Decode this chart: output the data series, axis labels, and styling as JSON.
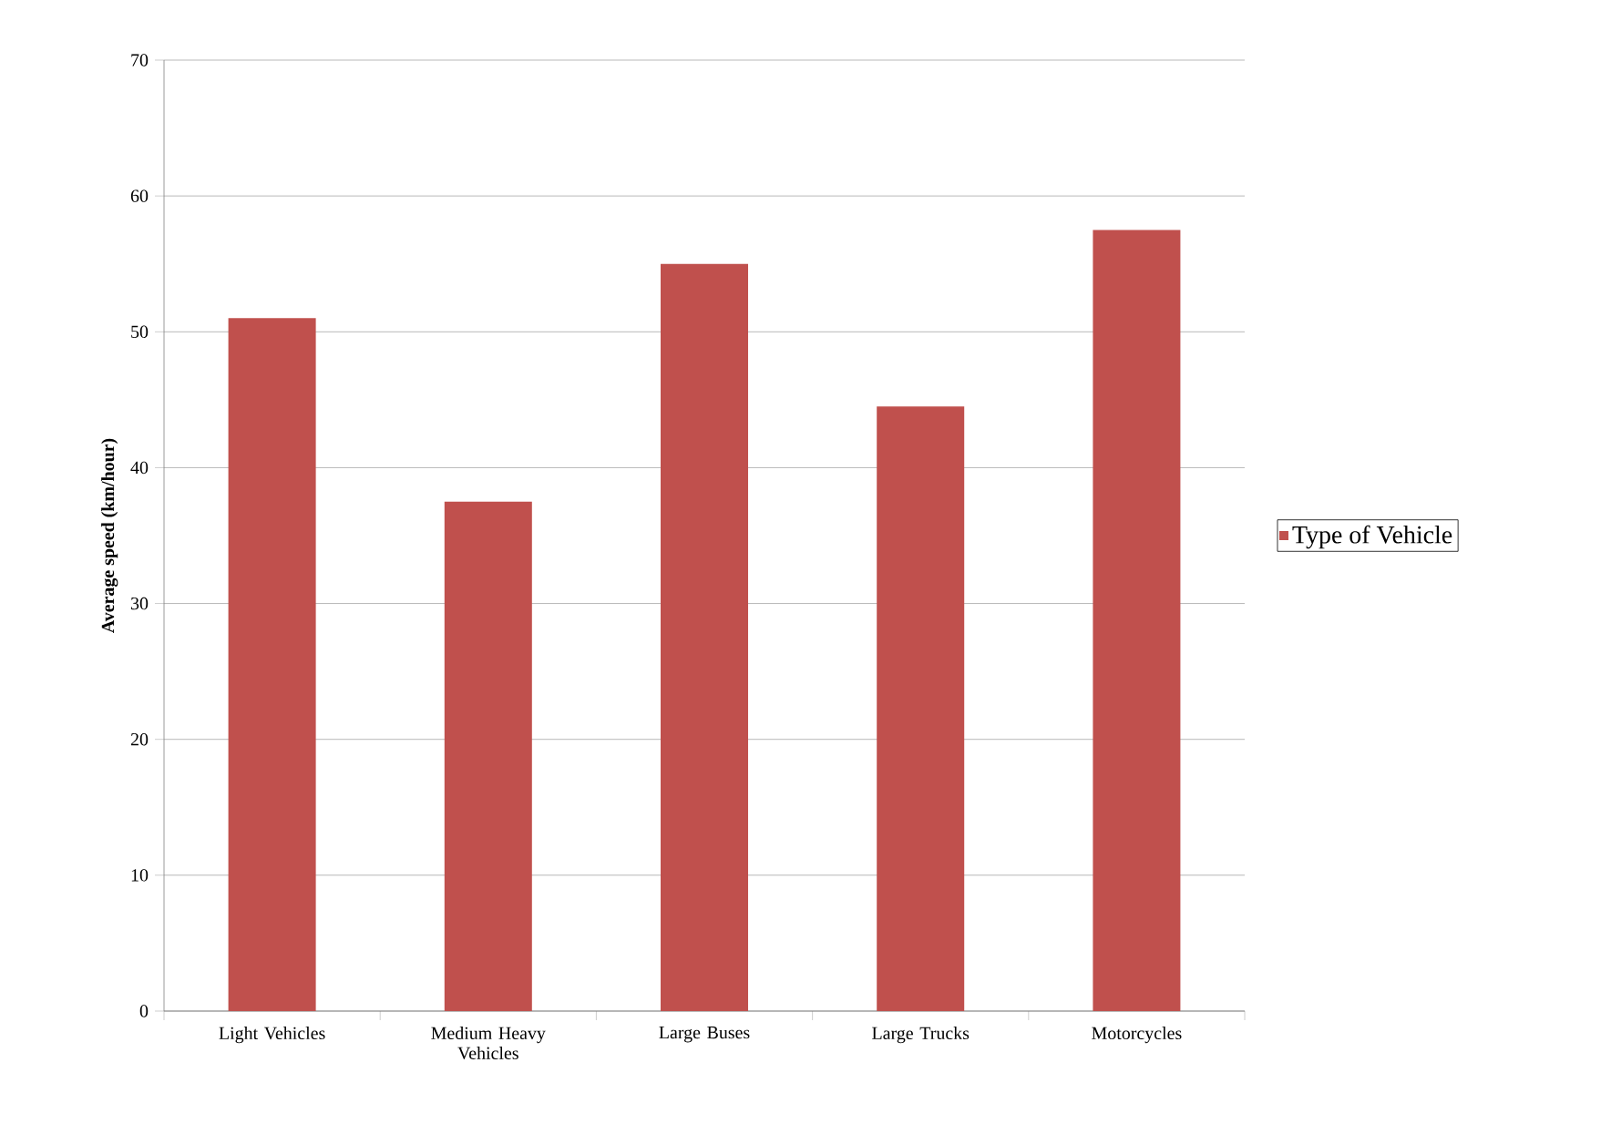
{
  "chart_data": {
    "type": "bar",
    "ylabel": "Average speed (km/hour)",
    "categories": [
      "Light Vehicles",
      "Medium Heavy Vehicles",
      "Large Buses",
      "Large Trucks",
      "Motorcycles"
    ],
    "series": [
      {
        "name": "Type of Vehicle",
        "color": "#c0504d",
        "values": [
          51,
          37.5,
          55,
          44.5,
          57.5
        ]
      }
    ],
    "ylim": [
      0,
      70
    ],
    "yticks": [
      0,
      10,
      20,
      30,
      40,
      50,
      60,
      70
    ],
    "grid": "y",
    "legend": "right"
  }
}
